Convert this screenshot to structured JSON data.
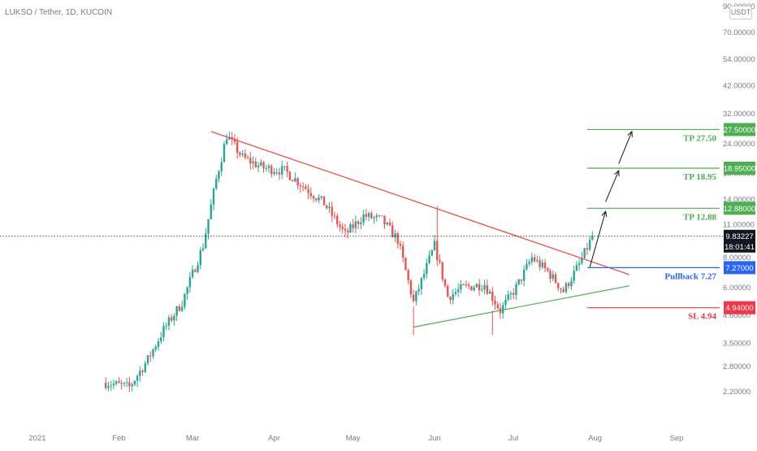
{
  "chart_data": {
    "type": "candlestick",
    "title": "LUKSO / Tether, 1D, KUCOIN",
    "currency": "USDT",
    "y_scale": "log",
    "ylim": [
      2.0,
      90.0
    ],
    "xlim": [
      "2021-01-01",
      "2021-09-05"
    ],
    "y_ticks": [
      {
        "value": 90,
        "label": "90.00000"
      },
      {
        "value": 70,
        "label": "70.00000"
      },
      {
        "value": 54,
        "label": "54.00000"
      },
      {
        "value": 42,
        "label": "42.00000"
      },
      {
        "value": 32,
        "label": "32.00000"
      },
      {
        "value": 24,
        "label": "24.00000"
      },
      {
        "value": 18,
        "label": "18.00000"
      },
      {
        "value": 14,
        "label": "14.00000"
      },
      {
        "value": 11,
        "label": "11.00000"
      },
      {
        "value": 8,
        "label": "8.00000"
      },
      {
        "value": 6,
        "label": "6.00000"
      },
      {
        "value": 4.6,
        "label": "4.60000"
      },
      {
        "value": 3.5,
        "label": "3.50000"
      },
      {
        "value": 2.8,
        "label": "2.80000"
      },
      {
        "value": 2.2,
        "label": "2.20000"
      }
    ],
    "x_ticks": [
      {
        "date": "2021-01-01",
        "label": "2021"
      },
      {
        "date": "2021-02-01",
        "label": "Feb"
      },
      {
        "date": "2021-03-01",
        "label": "Mar"
      },
      {
        "date": "2021-04-01",
        "label": "Apr"
      },
      {
        "date": "2021-05-01",
        "label": "May"
      },
      {
        "date": "2021-06-01",
        "label": "Jun"
      },
      {
        "date": "2021-07-01",
        "label": "Jul"
      },
      {
        "date": "2021-08-01",
        "label": "Aug"
      },
      {
        "date": "2021-09-01",
        "label": "Sep"
      }
    ],
    "series": [
      {
        "name": "close",
        "x": [
          "2021-01-27",
          "2021-02-05",
          "2021-02-12",
          "2021-02-18",
          "2021-02-25",
          "2021-03-05",
          "2021-03-10",
          "2021-03-14",
          "2021-03-20",
          "2021-03-28",
          "2021-04-05",
          "2021-04-12",
          "2021-04-20",
          "2021-04-28",
          "2021-05-05",
          "2021-05-12",
          "2021-05-18",
          "2021-05-24",
          "2021-06-01",
          "2021-06-06",
          "2021-06-12",
          "2021-06-20",
          "2021-06-26",
          "2021-07-02",
          "2021-07-08",
          "2021-07-14",
          "2021-07-20",
          "2021-07-26",
          "2021-07-31"
        ],
        "values": [
          2.4,
          2.3,
          3.0,
          4.0,
          5.2,
          9.0,
          17.0,
          26.0,
          21.0,
          19.0,
          18.5,
          16.0,
          13.5,
          10.0,
          12.0,
          11.5,
          9.5,
          5.2,
          9.0,
          5.5,
          6.0,
          6.2,
          4.8,
          6.0,
          8.0,
          7.0,
          5.8,
          7.5,
          9.83
        ]
      }
    ],
    "current_price": {
      "value": 9.83227,
      "label": "9.83227",
      "countdown": "18:01:41"
    },
    "levels": [
      {
        "name": "TP 27.50",
        "value": 27.5,
        "tag": "27.50000",
        "color": "#4caf50"
      },
      {
        "name": "TP 18.95",
        "value": 18.95,
        "tag": "18.95000",
        "color": "#4caf50"
      },
      {
        "name": "TP 12.88",
        "value": 12.88,
        "tag": "12.88000",
        "color": "#4caf50"
      },
      {
        "name": "Pullback 7.27",
        "value": 7.27,
        "tag": "7.27000",
        "color": "#2962ff"
      },
      {
        "name": "SL 4.94",
        "value": 4.94,
        "tag": "4.94000",
        "color": "#f23645"
      }
    ],
    "trendlines": [
      {
        "name": "resistance",
        "color": "#f44336",
        "from": {
          "date": "2021-03-08",
          "value": 27.0
        },
        "to": {
          "date": "2021-08-14",
          "value": 6.8
        }
      },
      {
        "name": "support",
        "color": "#4caf50",
        "from": {
          "date": "2021-05-24",
          "value": 4.1
        },
        "to": {
          "date": "2021-08-14",
          "value": 6.1
        }
      }
    ],
    "projection_arrows": [
      {
        "from": {
          "date": "2021-07-30",
          "value": 7.3
        },
        "to": {
          "date": "2021-08-05",
          "value": 12.5
        }
      },
      {
        "from": {
          "date": "2021-08-05",
          "value": 13.7
        },
        "to": {
          "date": "2021-08-10",
          "value": 18.5
        }
      },
      {
        "from": {
          "date": "2021-08-10",
          "value": 19.8
        },
        "to": {
          "date": "2021-08-15",
          "value": 27.0
        }
      }
    ],
    "colors": {
      "up": "#26a69a",
      "down": "#ef5350",
      "grid": "#f0f3fa",
      "axis_text": "#787b86"
    },
    "grid": false,
    "legend": "none"
  }
}
